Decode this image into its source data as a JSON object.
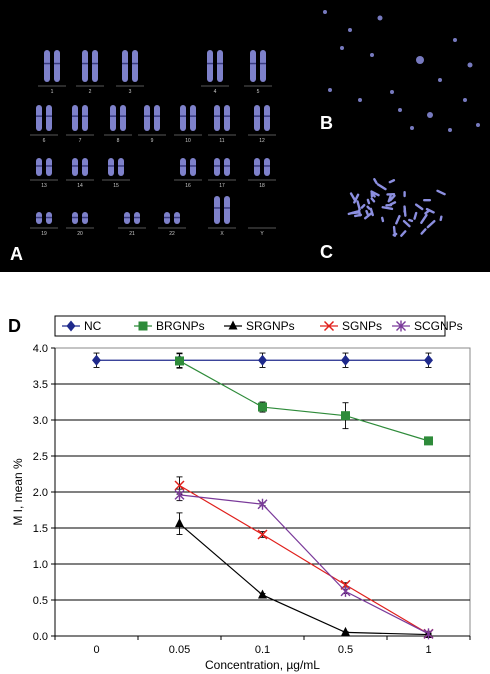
{
  "panels": {
    "a": "A",
    "b": "B",
    "c": "C",
    "d": "D"
  },
  "karyotype_labels": [
    "1",
    "2",
    "3",
    "4",
    "5",
    "6",
    "7",
    "8",
    "9",
    "10",
    "11",
    "12",
    "13",
    "14",
    "15",
    "16",
    "17",
    "18",
    "19",
    "20",
    "21",
    "22",
    "X",
    "Y"
  ],
  "colors": {
    "chromosome": "#8c8fe0",
    "NC": "#1f2a8c",
    "BRGNPs": "#2e8b3a",
    "SRGNPs": "#000000",
    "SGNPs": "#e0201c",
    "SCGNPs": "#7a3a9a"
  },
  "chart_data": {
    "type": "line",
    "xlabel": "Concentration, µg/mL",
    "ylabel": "M I, mean %",
    "categories": [
      "0",
      "0.05",
      "0.1",
      "0.5",
      "1"
    ],
    "ylim": [
      0,
      4.0
    ],
    "yticks": [
      "0.0",
      "0.5",
      "1.0",
      "1.5",
      "2.0",
      "2.5",
      "3.0",
      "3.5",
      "4.0"
    ],
    "grid": true,
    "legend_position": "top",
    "series": [
      {
        "name": "NC",
        "marker": "diamond",
        "values": [
          3.83,
          3.83,
          3.83,
          3.83,
          3.83
        ],
        "errors": [
          0.1,
          0.1,
          0.1,
          0.1,
          0.1
        ]
      },
      {
        "name": "BRGNPs",
        "marker": "square",
        "values": [
          null,
          3.82,
          3.18,
          3.06,
          2.71
        ],
        "errors": [
          null,
          0.1,
          0.07,
          0.18,
          0.02
        ]
      },
      {
        "name": "SRGNPs",
        "marker": "triangle",
        "values": [
          null,
          1.56,
          0.57,
          0.05,
          0.02
        ],
        "errors": [
          null,
          0.15,
          0.02,
          0.01,
          0.01
        ]
      },
      {
        "name": "SGNPs",
        "marker": "x",
        "values": [
          null,
          2.09,
          1.41,
          0.71,
          0.03
        ],
        "errors": [
          null,
          0.12,
          0.04,
          0.03,
          0.01
        ]
      },
      {
        "name": "SCGNPs",
        "marker": "star",
        "values": [
          null,
          1.96,
          1.83,
          0.62,
          0.03
        ],
        "errors": [
          null,
          0.08,
          0.02,
          0.03,
          0.01
        ]
      }
    ]
  }
}
